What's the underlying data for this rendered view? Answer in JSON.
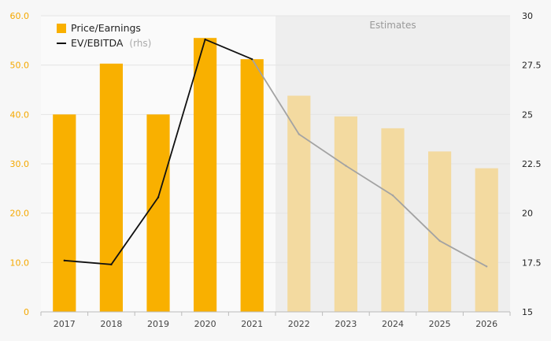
{
  "chart_data": {
    "type": "bar",
    "categories": [
      "2017",
      "2018",
      "2019",
      "2020",
      "2021",
      "2022",
      "2023",
      "2024",
      "2025",
      "2026"
    ],
    "series": [
      {
        "name": "Price/Earnings",
        "type": "bar",
        "axis": "left",
        "values": [
          40.0,
          50.3,
          40.0,
          55.5,
          51.2,
          43.8,
          39.6,
          37.2,
          32.5,
          29.1
        ]
      },
      {
        "name": "EV/EBITDA",
        "name_suffix": "(rhs)",
        "type": "line",
        "axis": "right",
        "values": [
          17.6,
          17.4,
          20.8,
          28.8,
          27.8,
          24.0,
          22.4,
          20.9,
          18.6,
          17.3
        ]
      }
    ],
    "y_left": {
      "ylim": [
        0,
        60
      ],
      "ticks": [
        "0",
        "10.0",
        "20.0",
        "30.0",
        "40.0",
        "50.0",
        "60.0"
      ]
    },
    "y_right": {
      "ylim": [
        15,
        30
      ],
      "ticks": [
        "15",
        "17.5",
        "20",
        "22.5",
        "25",
        "27.5",
        "30"
      ]
    },
    "estimates_label": "Estimates",
    "estimates_from": "2022",
    "legend_position": "top-left",
    "grid": true,
    "colors": {
      "bar_actual": "#f9b000",
      "bar_estimate": "#f3daa0",
      "line_actual": "#111111",
      "line_estimate": "#a3a3a3",
      "estimate_bg": "#eeeeee",
      "plot_bg": "#fafafa",
      "grid": "#e4e4e4",
      "left_axis_text": "#f5a800"
    }
  }
}
